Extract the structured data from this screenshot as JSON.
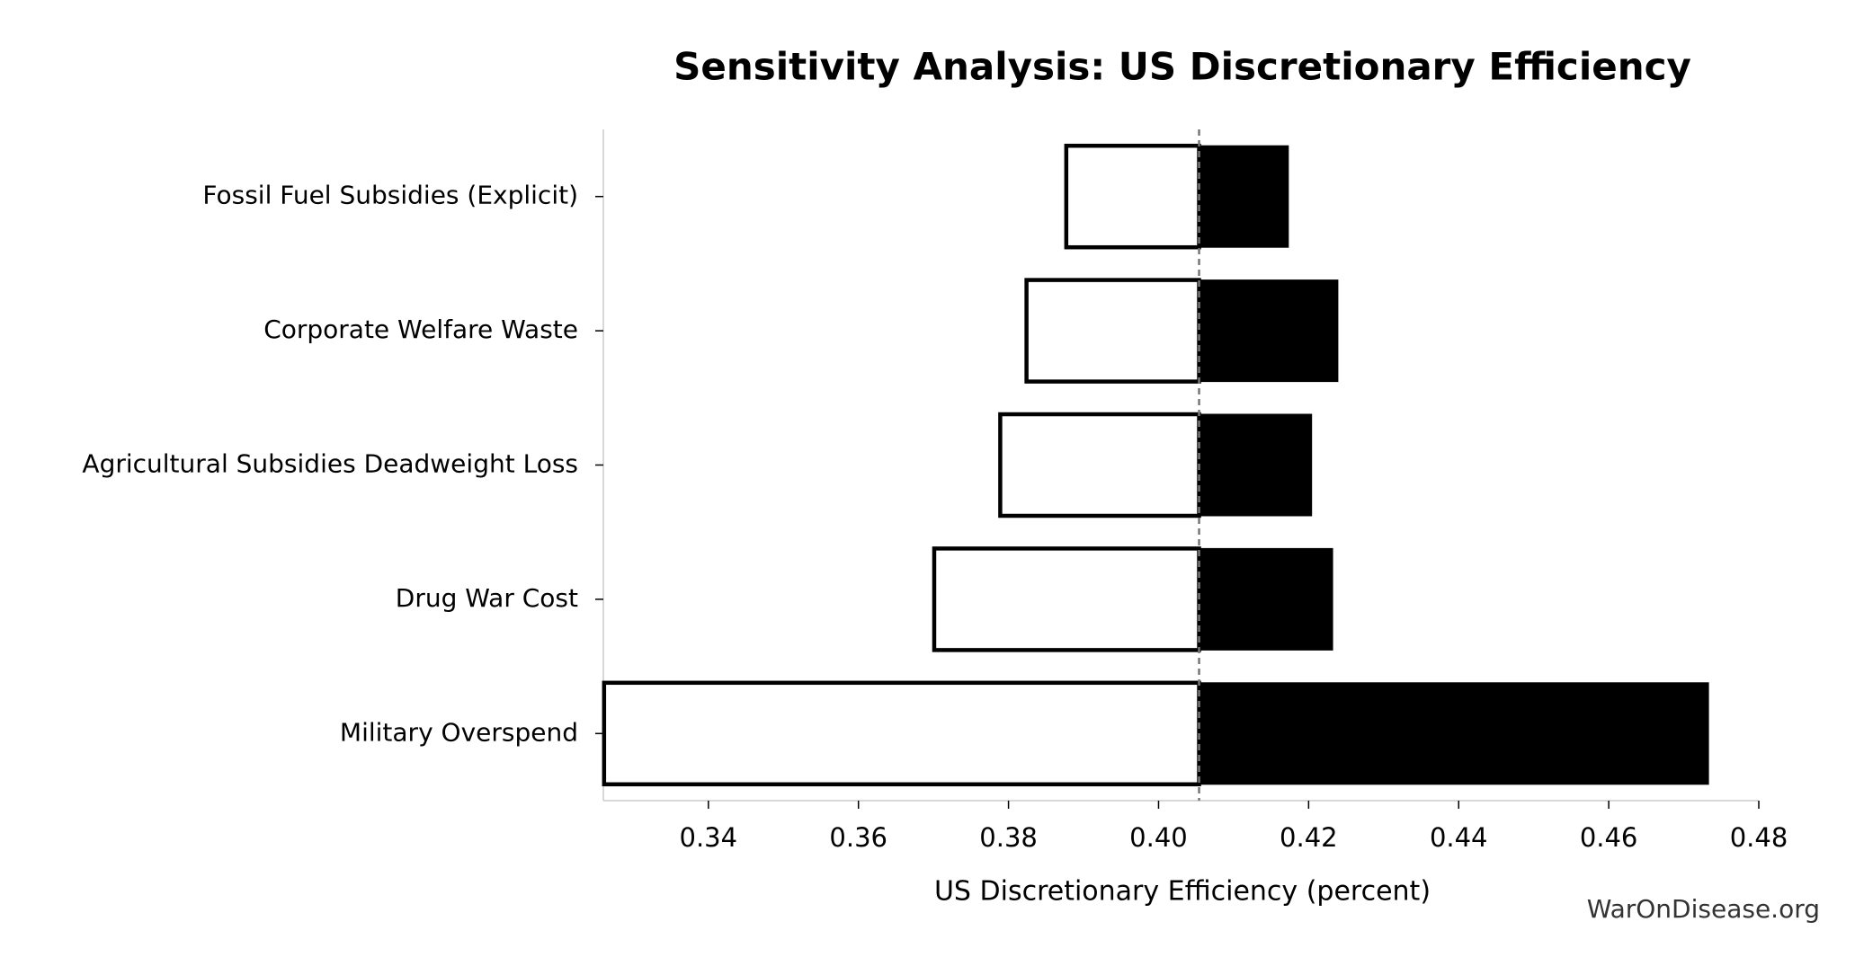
{
  "chart_data": {
    "type": "tornado",
    "title": "Sensitivity Analysis: US Discretionary Efficiency",
    "xlabel": "US Discretionary Efficiency (percent)",
    "footer": "WarOnDisease.org",
    "categories": [
      "Fossil Fuel Subsidies (Explicit)",
      "Corporate Welfare Waste",
      "Agricultural Subsidies Deadweight Loss",
      "Drug War Cost",
      "Military Overspend"
    ],
    "baseline": 0.4054,
    "series": [
      {
        "color": "#ffffff",
        "values": [
          0.3877,
          0.3824,
          0.3789,
          0.3701,
          0.3261
        ]
      },
      {
        "color": "#000000",
        "values": [
          0.4173,
          0.4239,
          0.4204,
          0.4232,
          0.4733
        ]
      }
    ],
    "xlim": [
      0.326,
      0.48
    ],
    "xticks": [
      0.34,
      0.36,
      0.38,
      {
        "value": 0.4,
        "label": "0.40"
      },
      0.42,
      0.44,
      0.46,
      0.48
    ]
  }
}
